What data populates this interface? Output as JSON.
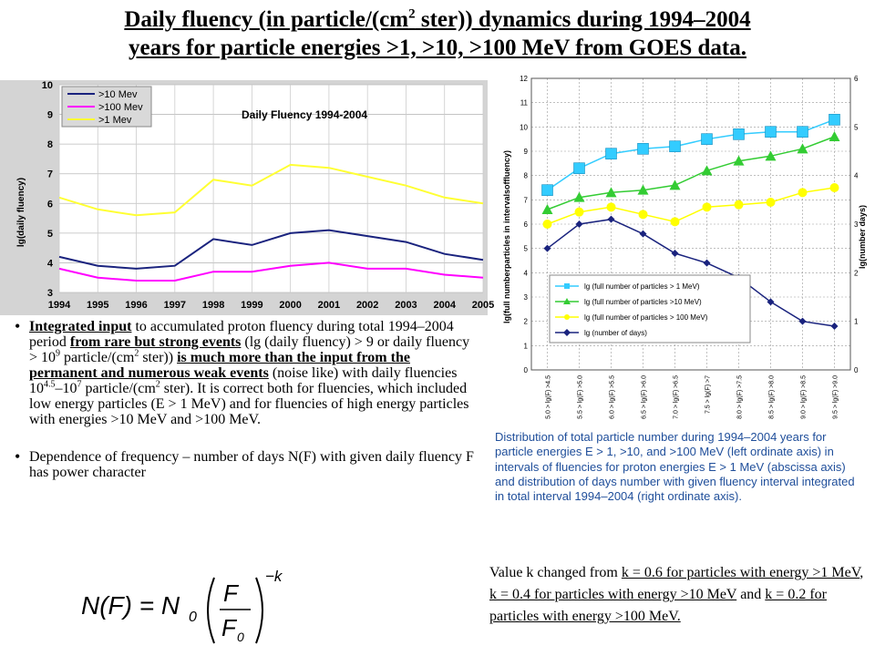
{
  "title": {
    "line1_a": "Daily fluency (in particle/(cm",
    "line1_sup": "2",
    "line1_b": " ster)) dynamics during 1994–2004",
    "line2": "years for particle energies >1, >10, >100 MeV from GOES data."
  },
  "left_chart": {
    "title": "Daily Fluency 1994-2004",
    "ylabel": "lg(daily fluency)",
    "legend": ">10 Mev",
    "legend2": ">100 Mev",
    "legend3": ">1 Mev"
  },
  "right_chart": {
    "ylabel_left": "lg(full numberparticles in intervalsoffluency)",
    "ylabel_right": "lg(number days)",
    "legend": {
      "l1": "lg  (full number of particles > 1 MeV)",
      "l2": "lg  (full number of particles >10 MeV)",
      "l3": "lg  (full number of particles > 100 MeV)",
      "l4": "lg  (number of days)"
    }
  },
  "chart_data": [
    {
      "type": "line",
      "title": "Daily Fluency 1994-2004",
      "ylabel": "lg(daily fluency)",
      "xlabel": "",
      "xlim": [
        1994,
        2005
      ],
      "ylim": [
        3,
        10
      ],
      "x_ticks": [
        "1994",
        "1995",
        "1996",
        "1997",
        "1998",
        "1999",
        "2000",
        "2001",
        "2002",
        "2003",
        "2004",
        "2005"
      ],
      "y_ticks": [
        "3",
        "4",
        "5",
        "6",
        "7",
        "8",
        "9",
        "10"
      ],
      "legend_position": "top-left",
      "grid": true,
      "series": [
        {
          "name": ">10 Mev",
          "color": "#1a237e",
          "x": [
            1994,
            1995,
            1996,
            1997,
            1998,
            1999,
            2000,
            2001,
            2002,
            2003,
            2004,
            2005
          ],
          "values": [
            4.2,
            3.9,
            3.8,
            3.9,
            4.8,
            4.6,
            5.0,
            5.1,
            4.9,
            4.7,
            4.3,
            4.1
          ]
        },
        {
          "name": ">100 Mev",
          "color": "#ff00ff",
          "x": [
            1994,
            1995,
            1996,
            1997,
            1998,
            1999,
            2000,
            2001,
            2002,
            2003,
            2004,
            2005
          ],
          "values": [
            3.8,
            3.5,
            3.4,
            3.4,
            3.7,
            3.7,
            3.9,
            4.0,
            3.8,
            3.8,
            3.6,
            3.5
          ]
        },
        {
          "name": ">1 Mev",
          "color": "#ffff33",
          "x": [
            1994,
            1995,
            1996,
            1997,
            1998,
            1999,
            2000,
            2001,
            2002,
            2003,
            2004,
            2005
          ],
          "values": [
            6.2,
            5.8,
            5.6,
            5.7,
            6.8,
            6.6,
            7.3,
            7.2,
            6.9,
            6.6,
            6.2,
            6.0
          ]
        }
      ]
    },
    {
      "type": "line",
      "title": "",
      "xlabel": "",
      "ylabel": "lg(full numberparticles in intervalsoffluency)",
      "ylabel_right": "lg(number days)",
      "ylim": [
        0,
        12
      ],
      "ylim_right": [
        0,
        6
      ],
      "y_ticks": [
        "0",
        "1",
        "2",
        "3",
        "4",
        "5",
        "6",
        "7",
        "8",
        "9",
        "10",
        "11",
        "12"
      ],
      "y_ticks_right": [
        "0",
        "1",
        "2",
        "3",
        "4",
        "5",
        "6"
      ],
      "grid": true,
      "categories": [
        "5.0 > lg(F) >4.5",
        "5.5 > lg(F) >5.0",
        "6.0 > lg(F) >5.5",
        "6.5 > lg(F) >6.0",
        "7.0 > lg(F) >6.5",
        "7.5 > lg(F) >7",
        "8.0 > lg(F) >7.5",
        "8.5 > lg(F) >8.0",
        "9.0 > lg(F) >8.5",
        "9.5 > lg(F) >9.0"
      ],
      "legend_position": "bottom-left",
      "series": [
        {
          "name": "lg  (full number of particles > 1 MeV)",
          "axis": "left",
          "color": "#33ccff",
          "marker": "square",
          "values": [
            7.4,
            8.3,
            8.9,
            9.1,
            9.2,
            9.5,
            9.7,
            9.8,
            9.8,
            10.3
          ]
        },
        {
          "name": "lg  (full number of particles >10 MeV)",
          "axis": "left",
          "color": "#33cc33",
          "marker": "triangle",
          "values": [
            6.6,
            7.1,
            7.3,
            7.4,
            7.6,
            8.2,
            8.6,
            8.8,
            9.1,
            9.6
          ]
        },
        {
          "name": "lg  (full number of particles > 100 MeV)",
          "axis": "left",
          "color": "#ffff00",
          "marker": "circle",
          "values": [
            6.0,
            6.5,
            6.7,
            6.4,
            6.1,
            6.7,
            6.8,
            6.9,
            7.3,
            7.5
          ]
        },
        {
          "name": "lg  (number of days)",
          "axis": "right",
          "color": "#1a237e",
          "marker": "diamond",
          "values": [
            2.5,
            3.0,
            3.1,
            2.8,
            2.4,
            2.2,
            1.9,
            1.4,
            1.0,
            0.9
          ]
        }
      ]
    }
  ],
  "bullets": {
    "b1": {
      "t1": "Integrated input",
      "t2": " to accumulated proton fluency during total 1994–2004 period ",
      "t3": "from rare but strong events",
      "t4": " (lg (daily fluency) > 9 or daily fluency > 10",
      "t4_sup": "9",
      "t5": " particle/(cm",
      "t5_sup": "2",
      "t6": " ster)) ",
      "t7": "is much more than the input from the permanent and numerous weak events",
      "t8": " (noise like) with daily fluencies 10",
      "t8_sup": "4.5",
      "t9": "–10",
      "t9_sup": "7",
      "t10": " particle/(cm",
      "t10_sup": "2",
      "t11": " ster). It is correct both for fluencies, which included low energy particles (E > 1 MeV) and for fluencies of high energy particles with energies >10 MeV and >100 MeV."
    },
    "b2": " Dependence of frequency – number of days N(F) with given daily fluency F has power character"
  },
  "formula": {
    "lhs": "N(F) = N",
    "n_sub": "0",
    "num": "F",
    "den": "F",
    "den_sub": "0",
    "exp": "−k"
  },
  "caption": "Distribution of total particle number during 1994–2004 years for particle energies E > 1, >10, and >100 MeV (left ordinate axis) in intervals of fluencies for proton energies E > 1 MeV (abscissa axis) and distribution of days number with given fluency interval integrated in total interval 1994–2004 (right ordinate axis).",
  "kvalue": {
    "t1": "Value k changed from ",
    "t2": "k = 0.6 for particles with energy >1 MeV",
    "t3": ", ",
    "t4": "k = 0.4 for particles with energy >10 MeV",
    "t5": " and ",
    "t6": "k = 0.2 for particles with energy >100 MeV."
  }
}
